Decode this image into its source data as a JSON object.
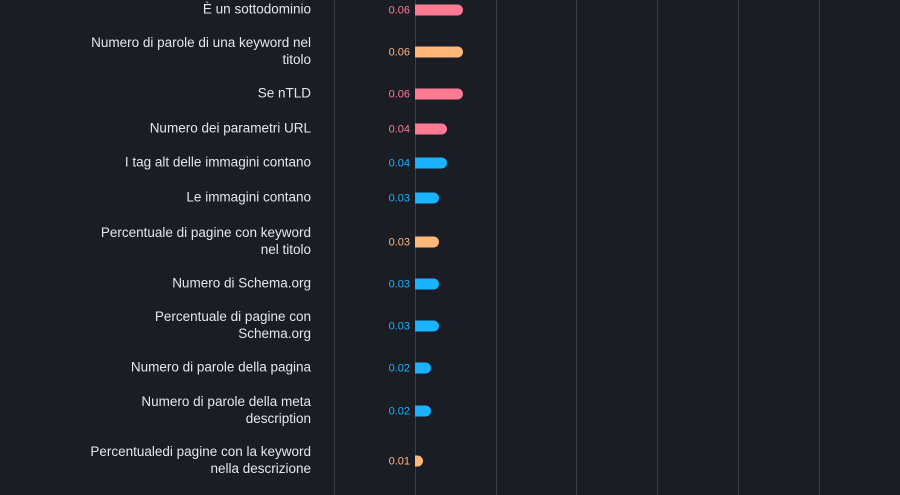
{
  "chart_data": {
    "type": "bar",
    "orientation": "horizontal",
    "grid": true,
    "colors": {
      "pink": "#ff7a93",
      "orange": "#ffb77a",
      "blue": "#1ab3ff",
      "background": "#1b1d25",
      "gridline": "#3a3d4a",
      "label": "#e6e7ea"
    },
    "bars": [
      {
        "label": [
          "È un sottodominio"
        ],
        "value": 0.06,
        "value_label": "0.06",
        "color": "pink"
      },
      {
        "label": [
          "Numero di parole di una keyword nel",
          "titolo"
        ],
        "value": 0.06,
        "value_label": "0.06",
        "color": "orange"
      },
      {
        "label": [
          "Se nTLD"
        ],
        "value": 0.06,
        "value_label": "0.06",
        "color": "pink"
      },
      {
        "label": [
          "Numero dei parametri URL"
        ],
        "value": 0.04,
        "value_label": "0.04",
        "color": "pink"
      },
      {
        "label": [
          "I tag alt delle immagini contano"
        ],
        "value": 0.04,
        "value_label": "0.04",
        "color": "blue"
      },
      {
        "label": [
          "Le immagini contano"
        ],
        "value": 0.03,
        "value_label": "0.03",
        "color": "blue"
      },
      {
        "label": [
          "Percentuale di pagine con keyword",
          "nel titolo"
        ],
        "value": 0.03,
        "value_label": "0.03",
        "color": "orange"
      },
      {
        "label": [
          "Numero di Schema.org"
        ],
        "value": 0.03,
        "value_label": "0.03",
        "color": "blue"
      },
      {
        "label": [
          "Percentuale di pagine con",
          "Schema.org"
        ],
        "value": 0.03,
        "value_label": "0.03",
        "color": "blue"
      },
      {
        "label": [
          "Numero di parole della pagina"
        ],
        "value": 0.02,
        "value_label": "0.02",
        "color": "blue"
      },
      {
        "label": [
          "Numero di parole della meta",
          "description"
        ],
        "value": 0.02,
        "value_label": "0.02",
        "color": "blue"
      },
      {
        "label": [
          "Percentualedi pagine con la keyword",
          "nella descrizione"
        ],
        "value": 0.01,
        "value_label": "0.01",
        "color": "orange"
      }
    ]
  }
}
